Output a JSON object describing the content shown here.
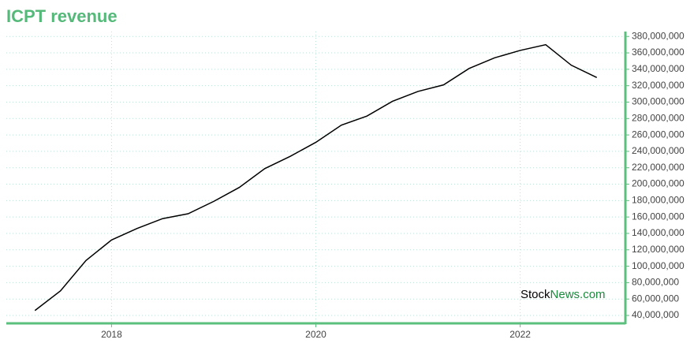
{
  "chart_data": {
    "type": "line",
    "title": "ICPT revenue",
    "watermark": {
      "part1": "Stock",
      "part2": "News.com"
    },
    "x": [
      2017.25,
      2017.5,
      2017.75,
      2018,
      2018.25,
      2018.5,
      2018.75,
      2019,
      2019.25,
      2019.5,
      2019.75,
      2020,
      2020.25,
      2020.5,
      2020.75,
      2021,
      2021.25,
      2021.5,
      2021.75,
      2022,
      2022.25,
      2022.5,
      2022.75
    ],
    "values": [
      46000000,
      70000000,
      107000000,
      132000000,
      146000000,
      158000000,
      164000000,
      179000000,
      196000000,
      219000000,
      234000000,
      251000000,
      272000000,
      283000000,
      301000000,
      313000000,
      321000000,
      341000000,
      354000000,
      363000000,
      370000000,
      345000000,
      330000000
    ],
    "color": "#000000",
    "xlim": [
      2016.97,
      2023.03
    ],
    "xticks": [
      2018,
      2020,
      2022
    ],
    "ylim": [
      30400000,
      386000000
    ],
    "yticks": [
      {
        "value": 40000000,
        "label": "40,000,000"
      },
      {
        "value": 60000000,
        "label": "60,000,000"
      },
      {
        "value": 80000000,
        "label": "80,000,000"
      },
      {
        "value": 100000000,
        "label": "100,000,000"
      },
      {
        "value": 120000000,
        "label": "120,000,000"
      },
      {
        "value": 140000000,
        "label": "140,000,000"
      },
      {
        "value": 160000000,
        "label": "160,000,000"
      },
      {
        "value": 180000000,
        "label": "180,000,000"
      },
      {
        "value": 200000000,
        "label": "200,000,000"
      },
      {
        "value": 220000000,
        "label": "220,000,000"
      },
      {
        "value": 240000000,
        "label": "240,000,000"
      },
      {
        "value": 260000000,
        "label": "260,000,000"
      },
      {
        "value": 280000000,
        "label": "280,000,000"
      },
      {
        "value": 300000000,
        "label": "300,000,000"
      },
      {
        "value": 320000000,
        "label": "320,000,000"
      },
      {
        "value": 340000000,
        "label": "340,000,000"
      },
      {
        "value": 360000000,
        "label": "360,000,000"
      },
      {
        "value": 380000000,
        "label": "380,000,000"
      }
    ],
    "grid": true
  }
}
